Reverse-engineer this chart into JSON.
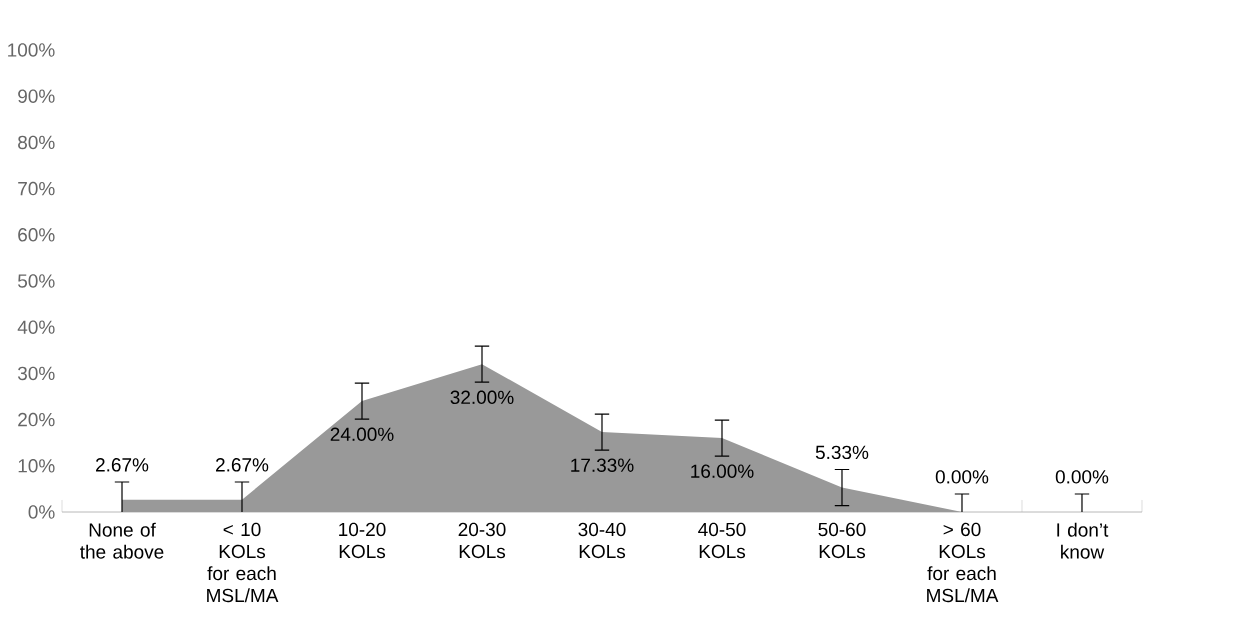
{
  "chart_data": {
    "type": "area",
    "categories": [
      "None of the above",
      "< 10 KOLs for each MSL/MA",
      "10-20 KOLs",
      "20-30 KOLs",
      "30-40 KOLs",
      "40-50 KOLs",
      "50-60 KOLs",
      "> 60 KOLs for each MSL/MA",
      "I don’t know"
    ],
    "values": [
      2.67,
      2.67,
      24.0,
      32.0,
      17.33,
      16.0,
      5.33,
      0.0,
      0.0
    ],
    "value_labels": [
      "2.67%",
      "2.67%",
      "24.00%",
      "32.00%",
      "17.33%",
      "16.00%",
      "5.33%",
      "0.00%",
      "0.00%"
    ],
    "errors": [
      [
        0,
        6.5
      ],
      [
        0,
        6.5
      ],
      [
        20.1,
        27.9
      ],
      [
        28.1,
        35.9
      ],
      [
        13.4,
        21.2
      ],
      [
        12.1,
        19.9
      ],
      [
        1.4,
        9.2
      ],
      [
        0,
        3.9
      ],
      [
        0,
        3.9
      ]
    ],
    "color": "#999999",
    "ylim": [
      0,
      100
    ],
    "yticks": [
      {
        "value": 0,
        "label": "0%"
      },
      {
        "value": 10,
        "label": "10%"
      },
      {
        "value": 20,
        "label": "20%"
      },
      {
        "value": 30,
        "label": "30%"
      },
      {
        "value": 40,
        "label": "40%"
      },
      {
        "value": 50,
        "label": "50%"
      },
      {
        "value": 60,
        "label": "60%"
      },
      {
        "value": 70,
        "label": "70%"
      },
      {
        "value": 80,
        "label": "80%"
      },
      {
        "value": 90,
        "label": "90%"
      },
      {
        "value": 100,
        "label": "100%"
      }
    ]
  }
}
